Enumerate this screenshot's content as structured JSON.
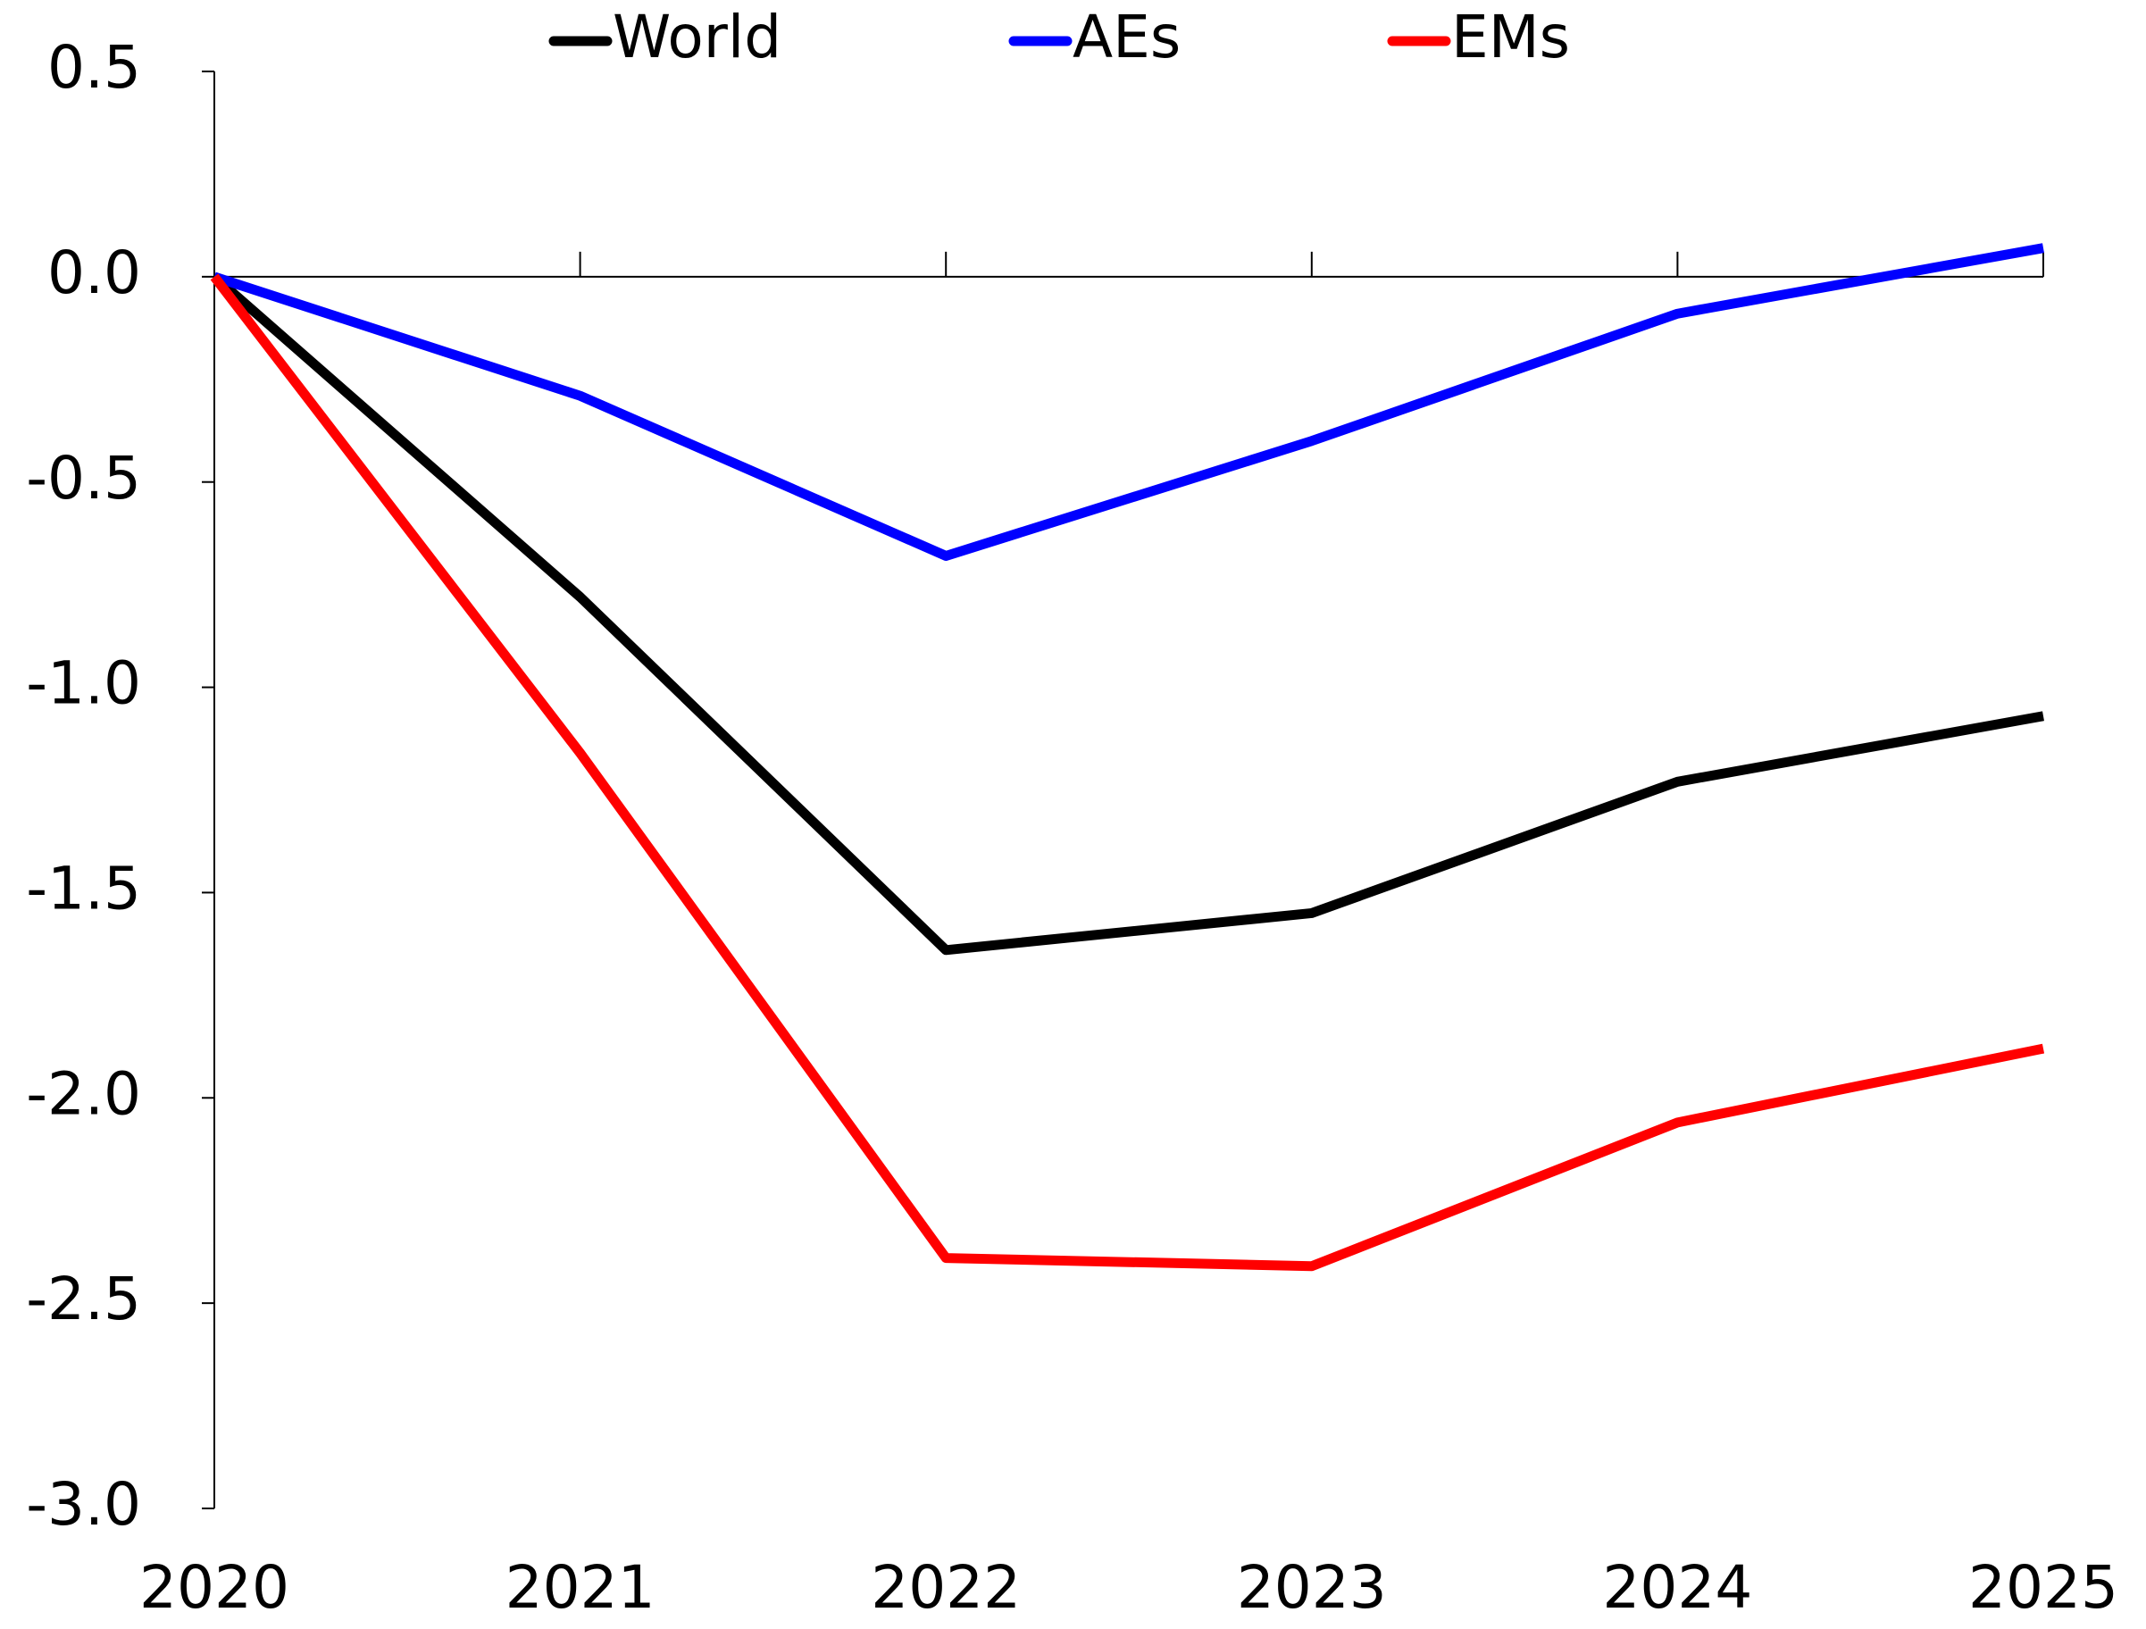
{
  "chart_data": {
    "type": "line",
    "categories": [
      "2020",
      "2021",
      "2022",
      "2023",
      "2024",
      "2025"
    ],
    "series": [
      {
        "name": "World",
        "color": "#000000",
        "values": [
          0,
          -0.78,
          -1.64,
          -1.55,
          -1.23,
          -1.07
        ]
      },
      {
        "name": "AEs",
        "color": "#0000ff",
        "values": [
          0,
          -0.29,
          -0.68,
          -0.4,
          -0.09,
          0.07
        ]
      },
      {
        "name": "EMs",
        "color": "#ff0000",
        "values": [
          0,
          -1.16,
          -2.39,
          -2.41,
          -2.06,
          -1.88
        ]
      }
    ],
    "ylim": [
      -3,
      0.5
    ],
    "yticks": [
      0.5,
      {
        "value": 0,
        "label": "0.0"
      },
      -0.5,
      {
        "value": -1,
        "label": "-1.0"
      },
      -1.5,
      {
        "value": -2,
        "label": "-2.0"
      },
      -2.5,
      {
        "value": -3,
        "label": "-3.0"
      }
    ],
    "legend": "top"
  }
}
